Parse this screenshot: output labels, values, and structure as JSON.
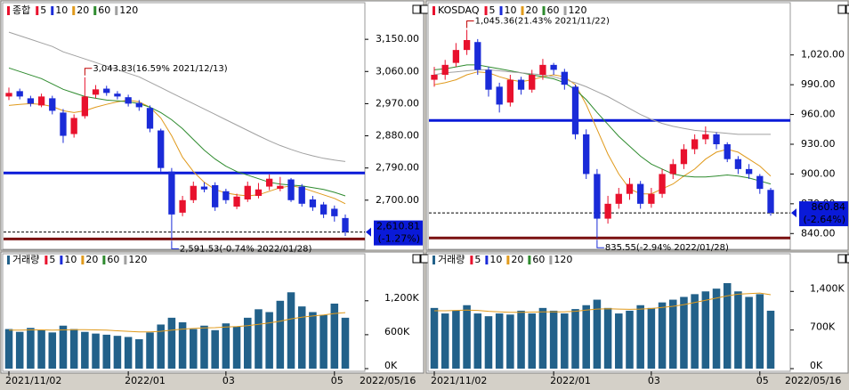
{
  "chart_data": [
    {
      "type": "candlestick",
      "legend_title": "종합",
      "up_color": "#e8112d",
      "down_color": "#1a2bd8",
      "open": [
        2990,
        3005,
        2985,
        2965,
        2985,
        2945,
        2885,
        2935,
        2995,
        3012,
        2998,
        2988,
        2972,
        2958,
        2895,
        2780,
        2665,
        2700,
        2738,
        2742,
        2725,
        2682,
        2702,
        2712,
        2738,
        2732,
        2758,
        2738,
        2702,
        2688,
        2676,
        2650
      ],
      "high": [
        3015,
        3012,
        2992,
        2998,
        2992,
        2955,
        2940,
        3043.83,
        3022,
        3020,
        3005,
        2995,
        2980,
        2965,
        2900,
        2790,
        2712,
        2752,
        2750,
        2750,
        2732,
        2718,
        2752,
        2748,
        2772,
        2765,
        2762,
        2745,
        2712,
        2695,
        2685,
        2660
      ],
      "low": [
        2980,
        2982,
        2962,
        2960,
        2940,
        2860,
        2875,
        2928,
        2985,
        2992,
        2982,
        2962,
        2950,
        2890,
        2780,
        2591.53,
        2655,
        2692,
        2722,
        2670,
        2690,
        2675,
        2695,
        2705,
        2728,
        2725,
        2695,
        2682,
        2670,
        2650,
        2640,
        2600
      ],
      "close": [
        3000,
        2990,
        2970,
        2990,
        2950,
        2880,
        2930,
        2990,
        3010,
        3000,
        2990,
        2970,
        2960,
        2900,
        2790,
        2660,
        2700,
        2740,
        2730,
        2680,
        2700,
        2710,
        2740,
        2730,
        2760,
        2740,
        2700,
        2690,
        2680,
        2660,
        2655,
        2610.81
      ],
      "ma": [
        {
          "name": "5",
          "color": "#e8112d"
        },
        {
          "name": "10",
          "color": "#1a2bd8"
        },
        {
          "name": "20",
          "color": "#e09a1c",
          "values": [
            2965,
            2968,
            2970,
            2968,
            2962,
            2950,
            2945,
            2950,
            2960,
            2968,
            2975,
            2980,
            2975,
            2960,
            2930,
            2880,
            2820,
            2780,
            2750,
            2730,
            2720,
            2715,
            2712,
            2715,
            2725,
            2735,
            2740,
            2735,
            2725,
            2715,
            2705,
            2690
          ]
        },
        {
          "name": "60",
          "color": "#2e8b2e",
          "values": [
            3070,
            3060,
            3050,
            3040,
            3025,
            3010,
            3000,
            2990,
            2985,
            2980,
            2978,
            2975,
            2970,
            2960,
            2945,
            2925,
            2900,
            2870,
            2840,
            2815,
            2795,
            2780,
            2770,
            2760,
            2750,
            2745,
            2742,
            2740,
            2735,
            2730,
            2722,
            2712
          ]
        },
        {
          "name": "120",
          "color": "#a0a0a0",
          "values": [
            3170,
            3160,
            3150,
            3140,
            3130,
            3115,
            3105,
            3095,
            3085,
            3075,
            3065,
            3055,
            3045,
            3030,
            3015,
            3000,
            2985,
            2970,
            2955,
            2940,
            2925,
            2910,
            2895,
            2880,
            2866,
            2853,
            2842,
            2832,
            2824,
            2817,
            2812,
            2808
          ]
        }
      ],
      "ylim": [
        2565,
        3245
      ],
      "yticks": [
        {
          "value": 2700,
          "label": "2,700.00"
        },
        {
          "value": 2790,
          "label": "2,790.00"
        },
        {
          "value": 2880,
          "label": "2,880.00"
        },
        {
          "value": 2970,
          "label": "2,970.00"
        },
        {
          "value": 3060,
          "label": "3,060.00"
        },
        {
          "value": 3150,
          "label": "3,150.00"
        }
      ],
      "hlines": [
        {
          "value": 2776,
          "color": "#0a1ad8"
        },
        {
          "value": 2591.53,
          "color": "#7a1010"
        }
      ],
      "high_label": "3,043.83(16.59% 2021/12/13)",
      "low_label": "2,591.53(-0.74% 2022/01/28)",
      "current": {
        "value": 2610.81,
        "label": "2,610.81",
        "change": "(-1.27%)"
      },
      "xticks": [
        {
          "value": 0,
          "label": "2021/11/02"
        },
        {
          "value": 11,
          "label": "2022/01"
        },
        {
          "value": 20,
          "label": "03"
        },
        {
          "value": 30,
          "label": "05"
        }
      ],
      "last_date": "2022/05/16",
      "volume": {
        "legend_title": "거래량",
        "color": "#22618a",
        "values": [
          700,
          650,
          720,
          680,
          640,
          760,
          700,
          650,
          620,
          600,
          580,
          560,
          520,
          640,
          780,
          900,
          820,
          700,
          760,
          680,
          800,
          740,
          900,
          1050,
          1000,
          1200,
          1350,
          1100,
          1000,
          950,
          1150,
          900
        ],
        "ma": [
          {
            "name": "5",
            "color": "#e8112d"
          },
          {
            "name": "10",
            "color": "#1a2bd8"
          },
          {
            "name": "20",
            "color": "#e09a1c",
            "values": [
              680,
              680,
              685,
              685,
              680,
              685,
              690,
              690,
              685,
              680,
              670,
              660,
              650,
              650,
              660,
              680,
              700,
              710,
              720,
              725,
              735,
              745,
              760,
              785,
              810,
              840,
              880,
              910,
              930,
              950,
              975,
              990
            ]
          },
          {
            "name": "60",
            "color": "#2e8b2e"
          },
          {
            "name": "120",
            "color": "#a0a0a0"
          }
        ],
        "ylim": [
          0,
          2000
        ],
        "yticks": [
          {
            "value": 0,
            "label": "0K"
          },
          {
            "value": 600,
            "label": "600K"
          },
          {
            "value": 1200,
            "label": "1,200K"
          }
        ]
      }
    },
    {
      "type": "candlestick",
      "legend_title": "KOSDAQ",
      "up_color": "#e8112d",
      "down_color": "#1a2bd8",
      "open": [
        995,
        1000,
        1012,
        1025,
        1033,
        1005,
        988,
        972,
        995,
        985,
        1000,
        1010,
        1003,
        988,
        940,
        900,
        855,
        870,
        880,
        890,
        870,
        880,
        900,
        910,
        925,
        935,
        940,
        930,
        915,
        905,
        898,
        884
      ],
      "high": [
        1008,
        1015,
        1032,
        1045.36,
        1036,
        1008,
        992,
        1000,
        998,
        1005,
        1016,
        1012,
        1006,
        990,
        945,
        905,
        878,
        886,
        896,
        893,
        886,
        905,
        915,
        930,
        940,
        948,
        942,
        932,
        918,
        910,
        900,
        886
      ],
      "low": [
        988,
        995,
        1008,
        1020,
        1000,
        978,
        962,
        968,
        980,
        982,
        995,
        1000,
        985,
        935,
        895,
        835.55,
        850,
        865,
        874,
        865,
        866,
        876,
        895,
        905,
        920,
        930,
        925,
        912,
        900,
        895,
        880,
        858
      ],
      "close": [
        1000,
        1010,
        1025,
        1035,
        1005,
        985,
        970,
        995,
        985,
        1000,
        1010,
        1005,
        990,
        940,
        900,
        855,
        870,
        880,
        890,
        870,
        880,
        900,
        910,
        925,
        935,
        940,
        930,
        915,
        905,
        900,
        885,
        860.84
      ],
      "ma": [
        {
          "name": "5",
          "color": "#e8112d"
        },
        {
          "name": "10",
          "color": "#1a2bd8"
        },
        {
          "name": "20",
          "color": "#e09a1c",
          "values": [
            990,
            992,
            995,
            1000,
            1003,
            1002,
            998,
            995,
            993,
            995,
            998,
            1000,
            998,
            990,
            970,
            945,
            920,
            900,
            885,
            880,
            880,
            885,
            890,
            898,
            905,
            915,
            922,
            925,
            922,
            915,
            908,
            898
          ]
        },
        {
          "name": "60",
          "color": "#2e8b2e",
          "values": [
            1005,
            1006,
            1008,
            1010,
            1010,
            1008,
            1006,
            1004,
            1002,
            1000,
            998,
            996,
            992,
            985,
            975,
            962,
            950,
            938,
            928,
            918,
            910,
            905,
            900,
            898,
            897,
            897,
            898,
            899,
            898,
            896,
            893,
            890
          ]
        },
        {
          "name": "120",
          "color": "#a0a0a0",
          "values": [
            1000,
            1002,
            1003,
            1004,
            1005,
            1005,
            1004,
            1003,
            1002,
            1001,
            1000,
            998,
            995,
            992,
            988,
            983,
            978,
            972,
            966,
            960,
            955,
            951,
            948,
            946,
            944,
            943,
            942,
            941,
            940,
            940,
            940,
            940
          ]
        }
      ],
      "ylim": [
        825,
        1070
      ],
      "yticks": [
        {
          "value": 840,
          "label": "840.00"
        },
        {
          "value": 870,
          "label": "870.00"
        },
        {
          "value": 900,
          "label": "900.00"
        },
        {
          "value": 930,
          "label": "930.00"
        },
        {
          "value": 960,
          "label": "960.00"
        },
        {
          "value": 990,
          "label": "990.00"
        },
        {
          "value": 1020,
          "label": "1,020.00"
        }
      ],
      "hlines": [
        {
          "value": 954,
          "color": "#0a1ad8"
        },
        {
          "value": 835.55,
          "color": "#7a1010"
        }
      ],
      "high_label": "1,045.36(21.43% 2021/11/22)",
      "low_label": "835.55(-2.94% 2022/01/28)",
      "current": {
        "value": 860.84,
        "label": "860.84",
        "change": "(-2.64%)"
      },
      "xticks": [
        {
          "value": 0,
          "label": "2021/11/02"
        },
        {
          "value": 11,
          "label": "2022/01"
        },
        {
          "value": 20,
          "label": "03"
        },
        {
          "value": 30,
          "label": "05"
        }
      ],
      "last_date": "2022/05/16",
      "volume": {
        "legend_title": "거래량",
        "color": "#22618a",
        "values": [
          1100,
          1000,
          1050,
          1150,
          1000,
          950,
          1000,
          980,
          1050,
          1000,
          1100,
          1050,
          1000,
          1080,
          1150,
          1250,
          1100,
          1000,
          1050,
          1150,
          1100,
          1200,
          1250,
          1300,
          1350,
          1400,
          1450,
          1550,
          1400,
          1300,
          1350,
          1050
        ],
        "ma": [
          {
            "name": "5",
            "color": "#e8112d"
          },
          {
            "name": "10",
            "color": "#1a2bd8"
          },
          {
            "name": "20",
            "color": "#e09a1c",
            "values": [
              1050,
              1050,
              1055,
              1060,
              1055,
              1040,
              1030,
              1020,
              1020,
              1025,
              1030,
              1030,
              1030,
              1040,
              1060,
              1080,
              1085,
              1080,
              1075,
              1080,
              1090,
              1110,
              1130,
              1160,
              1200,
              1240,
              1280,
              1320,
              1350,
              1360,
              1370,
              1340
            ]
          },
          {
            "name": "60",
            "color": "#2e8b2e"
          },
          {
            "name": "120",
            "color": "#a0a0a0"
          }
        ],
        "ylim": [
          0,
          2050
        ],
        "yticks": [
          {
            "value": 0,
            "label": "0K"
          },
          {
            "value": 700,
            "label": "700K"
          },
          {
            "value": 1400,
            "label": "1,400K"
          }
        ]
      }
    }
  ]
}
